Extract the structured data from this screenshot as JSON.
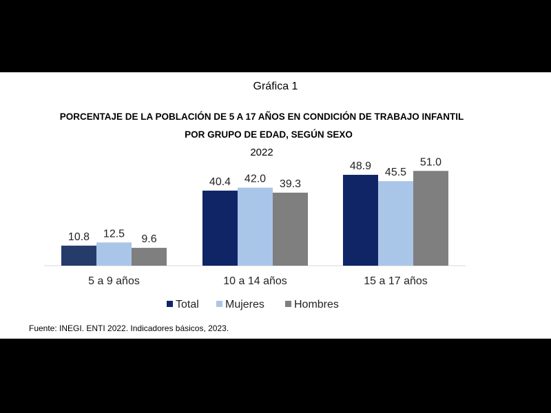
{
  "chart_data": {
    "type": "bar",
    "label": "Gráfica 1",
    "title": "PORCENTAJE DE LA POBLACIÓN DE 5 A 17 AÑOS EN CONDICIÓN DE TRABAJO INFANTIL",
    "subtitle": "POR GRUPO DE EDAD, SEGÚN SEXO",
    "year": "2022",
    "categories": [
      "5 a 9 años",
      "10 a 14 años",
      "15 a 17 años"
    ],
    "series": [
      {
        "name": "Total",
        "values": [
          10.8,
          40.4,
          48.9
        ],
        "color": "#0f2566"
      },
      {
        "name": "Mujeres",
        "values": [
          12.5,
          42.0,
          45.5
        ],
        "color": "#a9c6e8"
      },
      {
        "name": "Hombres",
        "values": [
          9.6,
          39.3,
          51.0
        ],
        "color": "#7f7f7f"
      }
    ],
    "value_labels": [
      [
        "10.8",
        "40.4",
        "48.9"
      ],
      [
        "12.5",
        "42.0",
        "45.5"
      ],
      [
        "9.6",
        "39.3",
        "51.0"
      ]
    ],
    "first_group_total_color": "#253c6b",
    "ylim": [
      0,
      60
    ],
    "grid": false,
    "legend_position": "bottom"
  },
  "source": "Fuente:  INEGI. ENTI 2022. Indicadores  básicos, 2023."
}
